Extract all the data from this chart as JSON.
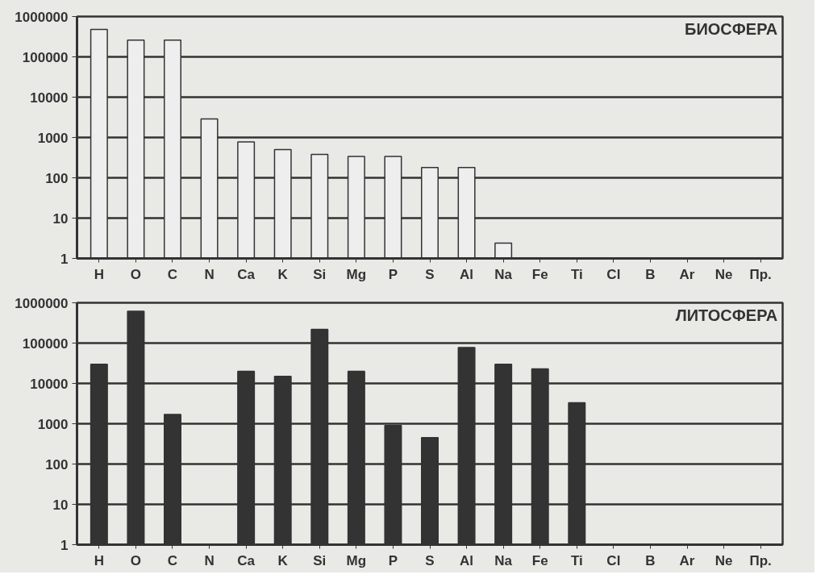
{
  "chart_data": [
    {
      "type": "bar",
      "title": "БИОСФЕРА",
      "categories": [
        "H",
        "O",
        "C",
        "N",
        "Ca",
        "K",
        "Si",
        "Mg",
        "P",
        "S",
        "Al",
        "Na",
        "Fe",
        "Ti",
        "Cl",
        "B",
        "Ar",
        "Ne",
        "Пр."
      ],
      "series": [
        {
          "color": "#eeeeee",
          "values": [
            480000,
            260000,
            260000,
            2900,
            780,
            500,
            380,
            340,
            340,
            180,
            180,
            2.4,
            null,
            null,
            null,
            null,
            null,
            null,
            null
          ]
        }
      ],
      "ylim": [
        1,
        1000000
      ],
      "yticks": [
        1,
        10,
        100,
        1000,
        10000,
        100000,
        1000000
      ],
      "log": true,
      "grid": "y"
    },
    {
      "type": "bar",
      "title": "ЛИТОСФЕРА",
      "categories": [
        "H",
        "O",
        "C",
        "N",
        "Ca",
        "K",
        "Si",
        "Mg",
        "P",
        "S",
        "Al",
        "Na",
        "Fe",
        "Ti",
        "Cl",
        "B",
        "Ar",
        "Ne",
        "Пр."
      ],
      "series": [
        {
          "color": "#333333",
          "values": [
            30000,
            620000,
            1700,
            null,
            20000,
            15000,
            220000,
            20000,
            900,
            450,
            78000,
            30000,
            23000,
            3300,
            null,
            null,
            null,
            null,
            null
          ]
        }
      ],
      "ylim": [
        1,
        1000000
      ],
      "yticks": [
        1,
        10,
        100,
        1000,
        10000,
        100000,
        1000000
      ],
      "log": true,
      "grid": "y"
    }
  ]
}
